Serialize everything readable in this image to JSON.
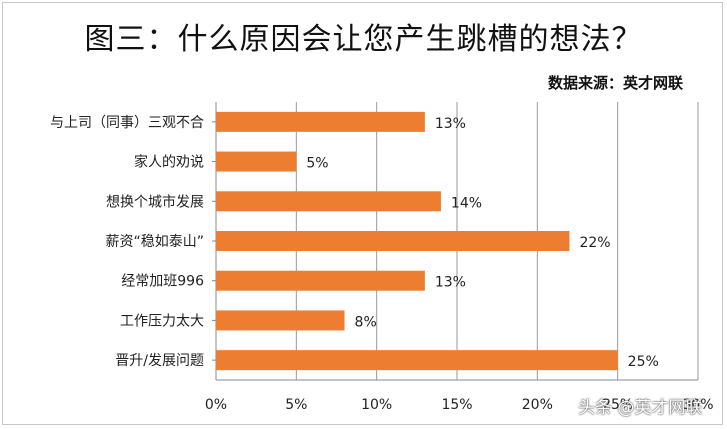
{
  "chart_data": {
    "type": "bar",
    "orientation": "horizontal",
    "title": "图三：什么原因会让您产生跳槽的想法？",
    "subtitle": "数据来源：英才网联",
    "categories": [
      "与上司（同事）三观不合",
      "家人的劝说",
      "想换个城市发展",
      "薪资“稳如泰山”",
      "经常加班996",
      "工作压力太大",
      "晋升/发展问题"
    ],
    "values": [
      13,
      5,
      14,
      22,
      13,
      8,
      25
    ],
    "value_labels": [
      "13%",
      "5%",
      "14%",
      "22%",
      "13%",
      "8%",
      "25%"
    ],
    "ticks": [
      "0%",
      "5%",
      "10%",
      "15%",
      "20%",
      "25%",
      "30%"
    ],
    "xlim": [
      0,
      30
    ],
    "grid": true,
    "bar_color": "#ED7D31"
  },
  "watermark": "头条 @英才网联"
}
